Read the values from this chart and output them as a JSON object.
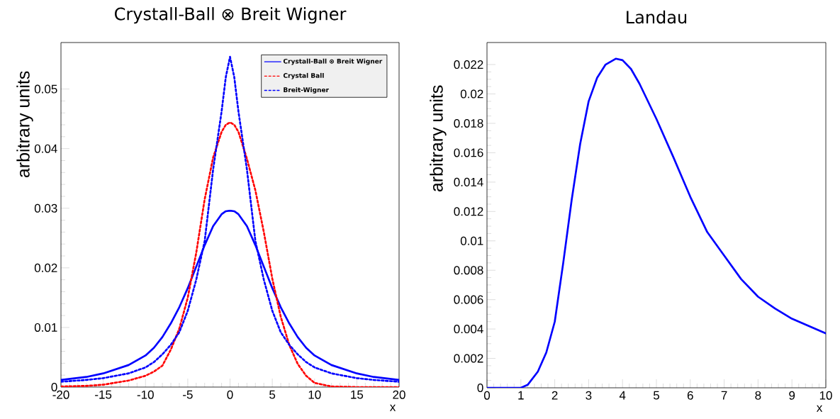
{
  "chart_data": [
    {
      "type": "line",
      "title": "Crystall-Ball ⊗ Breit Wigner",
      "xlabel": "x",
      "ylabel": "arbitrary units",
      "x": [
        -20,
        -17,
        -15,
        -12,
        -10,
        -9,
        -8,
        -7,
        -6,
        -5,
        -4,
        -3,
        -2,
        -1,
        -0.5,
        0,
        0.5,
        1,
        2,
        3,
        4,
        5,
        6,
        7,
        8,
        9,
        10,
        12,
        15,
        17,
        20
      ],
      "series": [
        {
          "name": "Crystall-Ball ⊗ Breit Wigner",
          "color": "#0000ff",
          "line_style": "solid",
          "values": [
            0.0012,
            0.0017,
            0.0023,
            0.0037,
            0.0053,
            0.0066,
            0.0084,
            0.0107,
            0.0134,
            0.0166,
            0.0202,
            0.0238,
            0.027,
            0.029,
            0.0295,
            0.0296,
            0.0295,
            0.029,
            0.027,
            0.0238,
            0.0202,
            0.0166,
            0.0134,
            0.0107,
            0.0084,
            0.0066,
            0.0053,
            0.0037,
            0.0023,
            0.0017,
            0.0012
          ]
        },
        {
          "name": "Crystal Ball",
          "color": "#ff0000",
          "line_style": "dotted",
          "values": [
            0.0001,
            0.0002,
            0.0004,
            0.0011,
            0.0019,
            0.0026,
            0.0036,
            0.0063,
            0.0098,
            0.015,
            0.0225,
            0.0315,
            0.0385,
            0.0428,
            0.044,
            0.0444,
            0.044,
            0.0428,
            0.0383,
            0.033,
            0.026,
            0.0182,
            0.0118,
            0.0071,
            0.0039,
            0.0019,
            0.0007,
            0.0001,
            0,
            0,
            0
          ]
        },
        {
          "name": "Breit-Wigner",
          "color": "#0000ff",
          "line_style": "dotted",
          "values": [
            0.0009,
            0.0012,
            0.0015,
            0.0023,
            0.0033,
            0.0042,
            0.0055,
            0.0071,
            0.0092,
            0.0128,
            0.018,
            0.0245,
            0.0365,
            0.0462,
            0.052,
            0.0554,
            0.052,
            0.0462,
            0.0365,
            0.0245,
            0.018,
            0.0128,
            0.0092,
            0.0071,
            0.0055,
            0.0042,
            0.0033,
            0.0023,
            0.0015,
            0.0012,
            0.0009
          ]
        }
      ],
      "xlim": [
        -20,
        20
      ],
      "ylim": [
        0,
        0.0578
      ],
      "xticks": [
        -20,
        -15,
        -10,
        -5,
        0,
        5,
        10,
        15,
        20
      ],
      "yticks": [
        0,
        0.01,
        0.02,
        0.03,
        0.04,
        0.05
      ],
      "legend": "top right"
    },
    {
      "type": "line",
      "title": "Landau",
      "xlabel": "x",
      "ylabel": "arbitrary units",
      "x": [
        0,
        0.5,
        1,
        1.2,
        1.5,
        1.75,
        2,
        2.25,
        2.5,
        2.75,
        3,
        3.25,
        3.5,
        3.8,
        4,
        4.25,
        4.5,
        5,
        5.5,
        6,
        6.5,
        7,
        7.5,
        8,
        8.5,
        9,
        9.5,
        10
      ],
      "series": [
        {
          "color": "#0000ff",
          "line_style": "solid",
          "values": [
            0,
            0,
            0,
            0.0002,
            0.0011,
            0.0024,
            0.0045,
            0.0085,
            0.0128,
            0.0166,
            0.0195,
            0.0211,
            0.022,
            0.0224,
            0.0223,
            0.0217,
            0.0207,
            0.0183,
            0.0157,
            0.013,
            0.0106,
            0.009,
            0.0074,
            0.0062,
            0.0054,
            0.0047,
            0.0042,
            0.0037
          ]
        }
      ],
      "xlim": [
        0,
        10
      ],
      "ylim": [
        0,
        0.0235
      ],
      "xticks": [
        0,
        1,
        2,
        3,
        4,
        5,
        6,
        7,
        8,
        9,
        10
      ],
      "yticks": [
        0,
        0.002,
        0.004,
        0.006,
        0.008,
        0.01,
        0.012,
        0.014,
        0.016,
        0.018,
        0.02,
        0.022
      ]
    }
  ]
}
